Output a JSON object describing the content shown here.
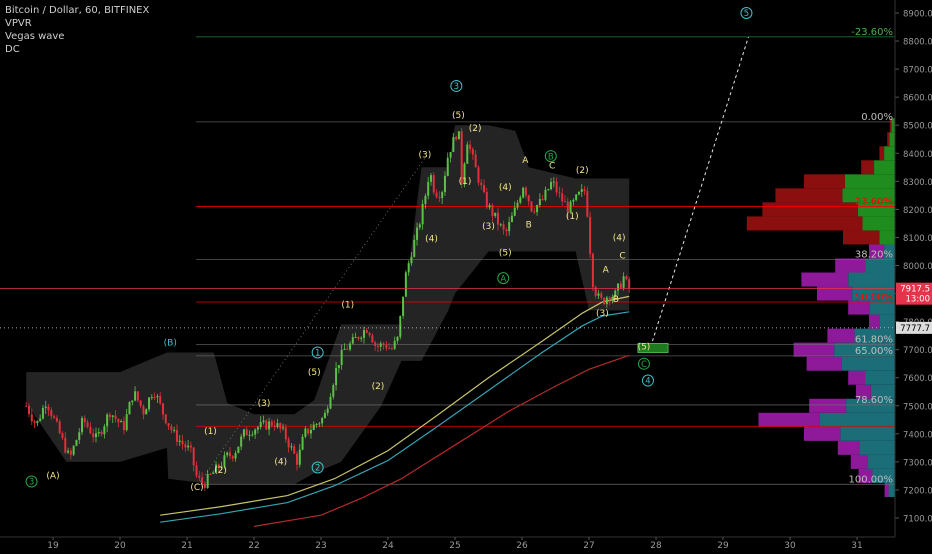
{
  "legend": {
    "symbol_line": "Bitcoin / Dollar, 60, BITFINEX",
    "indicators": [
      "VPVR",
      "Vegas wave",
      "DC"
    ]
  },
  "colors": {
    "background": "#000000",
    "candle_up": "#5bc247",
    "candle_down": "#e0303c",
    "donchian_fill": "#2a2a2a",
    "wave_label": "#f3e58a",
    "circle_label": "#3dc1c8",
    "green_circle": "#29a34a",
    "fib_line": "#6e6e6e",
    "fib_red": "#ff0000",
    "fib_green": "#4caf50",
    "vegas_yellow": "#c8c46a",
    "vegas_teal": "#36a3b5",
    "vegas_red": "#b52a2a",
    "vpvr_green": "#1e8c1e",
    "vpvr_red": "#8b0f0f",
    "vpvr_magenta": "#8e1a9a",
    "vpvr_teal": "#1b6e78",
    "price_tag": "#e5334b",
    "dotted_price_tag": "#dcdcdc"
  },
  "chart_data": {
    "type": "candlestick",
    "symbol": "Bitcoin / Dollar, 60, BITFINEX",
    "y_axis": {
      "min": 7100,
      "max": 8900,
      "ticks": [
        7100,
        7200,
        7300,
        7400,
        7500,
        7600,
        7700,
        7800,
        7900,
        8000,
        8100,
        8200,
        8300,
        8400,
        8500,
        8600,
        8700,
        8800,
        8900
      ],
      "tick_labels": [
        "7100.00",
        "7200.00",
        "7300.00",
        "7400.00",
        "7500.00",
        "7600.00",
        "7700.00",
        "7800.00",
        "7900.00",
        "8000.00",
        "8100.00",
        "8200.00",
        "8300.00",
        "8400.00",
        "8500.00",
        "8600.00",
        "8700.00",
        "8800.00",
        "8900.00"
      ]
    },
    "x_axis": {
      "min": 18.6,
      "max": 31.9,
      "ticks": [
        19,
        20,
        21,
        22,
        23,
        24,
        25,
        26,
        27,
        28,
        29,
        30,
        31
      ],
      "tick_labels": [
        "19",
        "20",
        "21",
        "22",
        "23",
        "24",
        "25",
        "26",
        "27",
        "28",
        "29",
        "30",
        "31"
      ]
    },
    "price_tags": [
      {
        "value": 7917.5,
        "label": "7917.5",
        "sub": "13:00",
        "style": "red"
      },
      {
        "value": 7777.7,
        "label": "7777.7",
        "style": "dotted"
      }
    ],
    "ohlc_path": [
      [
        18.6,
        7500
      ],
      [
        18.75,
        7430
      ],
      [
        18.9,
        7520
      ],
      [
        19.05,
        7430
      ],
      [
        19.25,
        7310
      ],
      [
        19.45,
        7450
      ],
      [
        19.65,
        7380
      ],
      [
        19.85,
        7480
      ],
      [
        20.05,
        7420
      ],
      [
        20.2,
        7550
      ],
      [
        20.35,
        7480
      ],
      [
        20.5,
        7560
      ],
      [
        20.65,
        7470
      ],
      [
        20.8,
        7400
      ],
      [
        20.95,
        7360
      ],
      [
        21.05,
        7340
      ],
      [
        21.15,
        7240
      ],
      [
        21.25,
        7220
      ],
      [
        21.35,
        7250
      ],
      [
        21.5,
        7290
      ],
      [
        21.6,
        7320
      ],
      [
        21.7,
        7330
      ],
      [
        21.85,
        7400
      ],
      [
        22.0,
        7420
      ],
      [
        22.15,
        7430
      ],
      [
        22.3,
        7440
      ],
      [
        22.45,
        7400
      ],
      [
        22.55,
        7350
      ],
      [
        22.65,
        7300
      ],
      [
        22.75,
        7400
      ],
      [
        22.9,
        7430
      ],
      [
        23.05,
        7460
      ],
      [
        23.15,
        7560
      ],
      [
        23.25,
        7650
      ],
      [
        23.35,
        7700
      ],
      [
        23.45,
        7720
      ],
      [
        23.6,
        7760
      ],
      [
        23.7,
        7780
      ],
      [
        23.82,
        7710
      ],
      [
        23.95,
        7720
      ],
      [
        24.05,
        7700
      ],
      [
        24.15,
        7740
      ],
      [
        24.25,
        7950
      ],
      [
        24.35,
        8050
      ],
      [
        24.45,
        8130
      ],
      [
        24.55,
        8240
      ],
      [
        24.62,
        8340
      ],
      [
        24.7,
        8260
      ],
      [
        24.8,
        8260
      ],
      [
        24.9,
        8400
      ],
      [
        24.97,
        8440
      ],
      [
        25.05,
        8490
      ],
      [
        25.1,
        8300
      ],
      [
        25.18,
        8450
      ],
      [
        25.3,
        8350
      ],
      [
        25.45,
        8230
      ],
      [
        25.6,
        8170
      ],
      [
        25.75,
        8110
      ],
      [
        25.9,
        8200
      ],
      [
        26.02,
        8290
      ],
      [
        26.15,
        8200
      ],
      [
        26.3,
        8230
      ],
      [
        26.45,
        8300
      ],
      [
        26.55,
        8250
      ],
      [
        26.7,
        8200
      ],
      [
        26.85,
        8250
      ],
      [
        26.95,
        8270
      ],
      [
        27.05,
        7950
      ],
      [
        27.12,
        7890
      ],
      [
        27.2,
        7870
      ],
      [
        27.3,
        7900
      ],
      [
        27.38,
        7890
      ],
      [
        27.46,
        7930
      ],
      [
        27.52,
        7960
      ],
      [
        27.58,
        7920
      ],
      [
        27.63,
        7917.5
      ]
    ],
    "donchian_channel": [
      [
        18.6,
        7510,
        7620
      ],
      [
        19.2,
        7300,
        7620
      ],
      [
        20.0,
        7300,
        7620
      ],
      [
        20.7,
        7350,
        7690
      ],
      [
        20.72,
        7240,
        7690
      ],
      [
        21.4,
        7220,
        7690
      ],
      [
        21.6,
        7220,
        7510
      ],
      [
        22.0,
        7220,
        7470
      ],
      [
        22.6,
        7220,
        7470
      ],
      [
        22.9,
        7260,
        7520
      ],
      [
        23.3,
        7300,
        7790
      ],
      [
        23.9,
        7500,
        7790
      ],
      [
        24.2,
        7660,
        7790
      ],
      [
        24.5,
        7660,
        8350
      ],
      [
        24.9,
        7840,
        8350
      ],
      [
        25.0,
        7900,
        8500
      ],
      [
        25.5,
        8050,
        8500
      ],
      [
        25.9,
        8050,
        8480
      ],
      [
        26.1,
        8050,
        8350
      ],
      [
        26.8,
        8050,
        8310
      ],
      [
        27.0,
        7840,
        8310
      ],
      [
        27.6,
        7840,
        8310
      ]
    ],
    "vegas_wave": [
      {
        "name": "",
        "color": "yellow",
        "points": [
          [
            20.6,
            7110
          ],
          [
            21.5,
            7140
          ],
          [
            22.5,
            7180
          ],
          [
            23.2,
            7240
          ],
          [
            24.0,
            7340
          ],
          [
            24.7,
            7460
          ],
          [
            25.5,
            7600
          ],
          [
            26.3,
            7730
          ],
          [
            26.9,
            7830
          ],
          [
            27.2,
            7870
          ],
          [
            27.6,
            7890
          ]
        ]
      },
      {
        "name": "",
        "color": "teal",
        "points": [
          [
            20.6,
            7085
          ],
          [
            21.5,
            7115
          ],
          [
            22.5,
            7155
          ],
          [
            23.2,
            7215
          ],
          [
            24.0,
            7305
          ],
          [
            24.7,
            7420
          ],
          [
            25.5,
            7555
          ],
          [
            26.3,
            7690
          ],
          [
            26.9,
            7785
          ],
          [
            27.2,
            7820
          ],
          [
            27.6,
            7835
          ]
        ]
      },
      {
        "name": "",
        "color": "red",
        "points": [
          [
            22.0,
            7070
          ],
          [
            23.0,
            7110
          ],
          [
            23.6,
            7170
          ],
          [
            24.2,
            7240
          ],
          [
            25.0,
            7360
          ],
          [
            25.8,
            7480
          ],
          [
            26.5,
            7570
          ],
          [
            27.0,
            7630
          ],
          [
            27.6,
            7680
          ]
        ]
      }
    ],
    "fib_levels": [
      {
        "label": "-23.60%",
        "value": 8815,
        "color": "green"
      },
      {
        "label": "0.00%",
        "value": 8512,
        "color": "gray"
      },
      {
        "label": "23.60%",
        "value": 8210,
        "color": "red"
      },
      {
        "label": "38.20%",
        "value": 8021,
        "color": "gray"
      },
      {
        "label": "50.00%",
        "value": 7870,
        "color": "red"
      },
      {
        "label": "61.80%",
        "value": 7718,
        "color": "gray"
      },
      {
        "label": "65.00%",
        "value": 7678,
        "color": "gray"
      },
      {
        "label": "78.60%",
        "value": 7503,
        "color": "gray"
      },
      {
        "label": "",
        "value": 7427,
        "color": "red"
      },
      {
        "label": "100.00%",
        "value": 7220,
        "color": "gray"
      }
    ],
    "wave_labels": [
      {
        "text": "(A)",
        "x": 19.0,
        "y": 7240,
        "color": "yellow"
      },
      {
        "text": "(B)",
        "x": 20.75,
        "y": 7715,
        "color": "cyan"
      },
      {
        "text": "(C)",
        "x": 21.15,
        "y": 7200,
        "color": "yellow"
      },
      {
        "text": "(1)",
        "x": 21.35,
        "y": 7400,
        "color": "yellow"
      },
      {
        "text": "(2)",
        "x": 21.5,
        "y": 7260,
        "color": "yellow"
      },
      {
        "text": "(3)",
        "x": 22.15,
        "y": 7500,
        "color": "yellow"
      },
      {
        "text": "(4)",
        "x": 22.4,
        "y": 7290,
        "color": "yellow"
      },
      {
        "text": "(5)",
        "x": 22.9,
        "y": 7610,
        "color": "yellow"
      },
      {
        "text": "(1)",
        "x": 23.4,
        "y": 7850,
        "color": "yellow"
      },
      {
        "text": "(2)",
        "x": 23.85,
        "y": 7560,
        "color": "yellow"
      },
      {
        "text": "(3)",
        "x": 24.55,
        "y": 8385,
        "color": "yellow"
      },
      {
        "text": "(4)",
        "x": 24.65,
        "y": 8085,
        "color": "yellow"
      },
      {
        "text": "(5)",
        "x": 25.05,
        "y": 8525,
        "color": "yellow"
      },
      {
        "text": "(1)",
        "x": 25.15,
        "y": 8290,
        "color": "yellow"
      },
      {
        "text": "(2)",
        "x": 25.3,
        "y": 8480,
        "color": "yellow"
      },
      {
        "text": "(3)",
        "x": 25.5,
        "y": 8130,
        "color": "yellow"
      },
      {
        "text": "(4)",
        "x": 25.75,
        "y": 8270,
        "color": "yellow"
      },
      {
        "text": "(5)",
        "x": 25.75,
        "y": 8035,
        "color": "yellow"
      },
      {
        "text": "A",
        "x": 26.05,
        "y": 8365,
        "color": "yellow"
      },
      {
        "text": "B",
        "x": 26.1,
        "y": 8135,
        "color": "yellow"
      },
      {
        "text": "C",
        "x": 26.45,
        "y": 8345,
        "color": "yellow"
      },
      {
        "text": "(2)",
        "x": 26.9,
        "y": 8330,
        "color": "yellow"
      },
      {
        "text": "(1)",
        "x": 26.75,
        "y": 8165,
        "color": "yellow"
      },
      {
        "text": "(4)",
        "x": 27.45,
        "y": 8090,
        "color": "yellow"
      },
      {
        "text": "A",
        "x": 27.25,
        "y": 7975,
        "color": "yellow"
      },
      {
        "text": "C",
        "x": 27.5,
        "y": 8025,
        "color": "yellow"
      },
      {
        "text": "B",
        "x": 27.4,
        "y": 7870,
        "color": "yellow"
      },
      {
        "text": "(3)",
        "x": 27.2,
        "y": 7820,
        "color": "yellow"
      },
      {
        "text": "(5)",
        "x": 27.82,
        "y": 7700,
        "color": "yellow"
      }
    ],
    "circled_labels": [
      {
        "text": "3",
        "x": 18.68,
        "y": 7230,
        "color": "green"
      },
      {
        "text": "1",
        "x": 22.95,
        "y": 7690,
        "color": "cyan"
      },
      {
        "text": "2",
        "x": 22.95,
        "y": 7280,
        "color": "cyan"
      },
      {
        "text": "3",
        "x": 25.02,
        "y": 8640,
        "color": "cyan"
      },
      {
        "text": "A",
        "x": 25.72,
        "y": 7955,
        "color": "green"
      },
      {
        "text": "B",
        "x": 26.43,
        "y": 8390,
        "color": "green"
      },
      {
        "text": "C",
        "x": 27.82,
        "y": 7650,
        "color": "green"
      },
      {
        "text": "4",
        "x": 27.88,
        "y": 7590,
        "color": "cyan"
      },
      {
        "text": "5",
        "x": 29.35,
        "y": 8900,
        "color": "cyan"
      }
    ],
    "projection": {
      "from": [
        27.92,
        7710
      ],
      "to": [
        29.38,
        8815
      ]
    },
    "target_box": {
      "x1": 27.73,
      "x2": 28.18,
      "y1": 7690,
      "y2": 7722
    },
    "vpvr": {
      "levels": [
        7200,
        7250,
        7300,
        7350,
        7400,
        7450,
        7500,
        7550,
        7600,
        7650,
        7700,
        7750,
        7800,
        7850,
        7900,
        7950,
        8000,
        8050,
        8100,
        8150,
        8200,
        8250,
        8300,
        8350,
        8400,
        8450,
        8500
      ],
      "volumes": [
        8,
        28,
        34,
        44,
        70,
        105,
        66,
        30,
        36,
        68,
        78,
        52,
        20,
        36,
        60,
        72,
        46,
        20,
        40,
        114,
        102,
        92,
        70,
        26,
        12,
        6,
        4
      ],
      "up_share": [
        0.62,
        0.62,
        0.62,
        0.62,
        0.6,
        0.55,
        0.57,
        0.62,
        0.64,
        0.6,
        0.6,
        0.6,
        0.6,
        0.55,
        0.55,
        0.5,
        0.5,
        0.42,
        0.3,
        0.22,
        0.28,
        0.44,
        0.55,
        0.62,
        0.7,
        0.7,
        0.7
      ]
    }
  }
}
